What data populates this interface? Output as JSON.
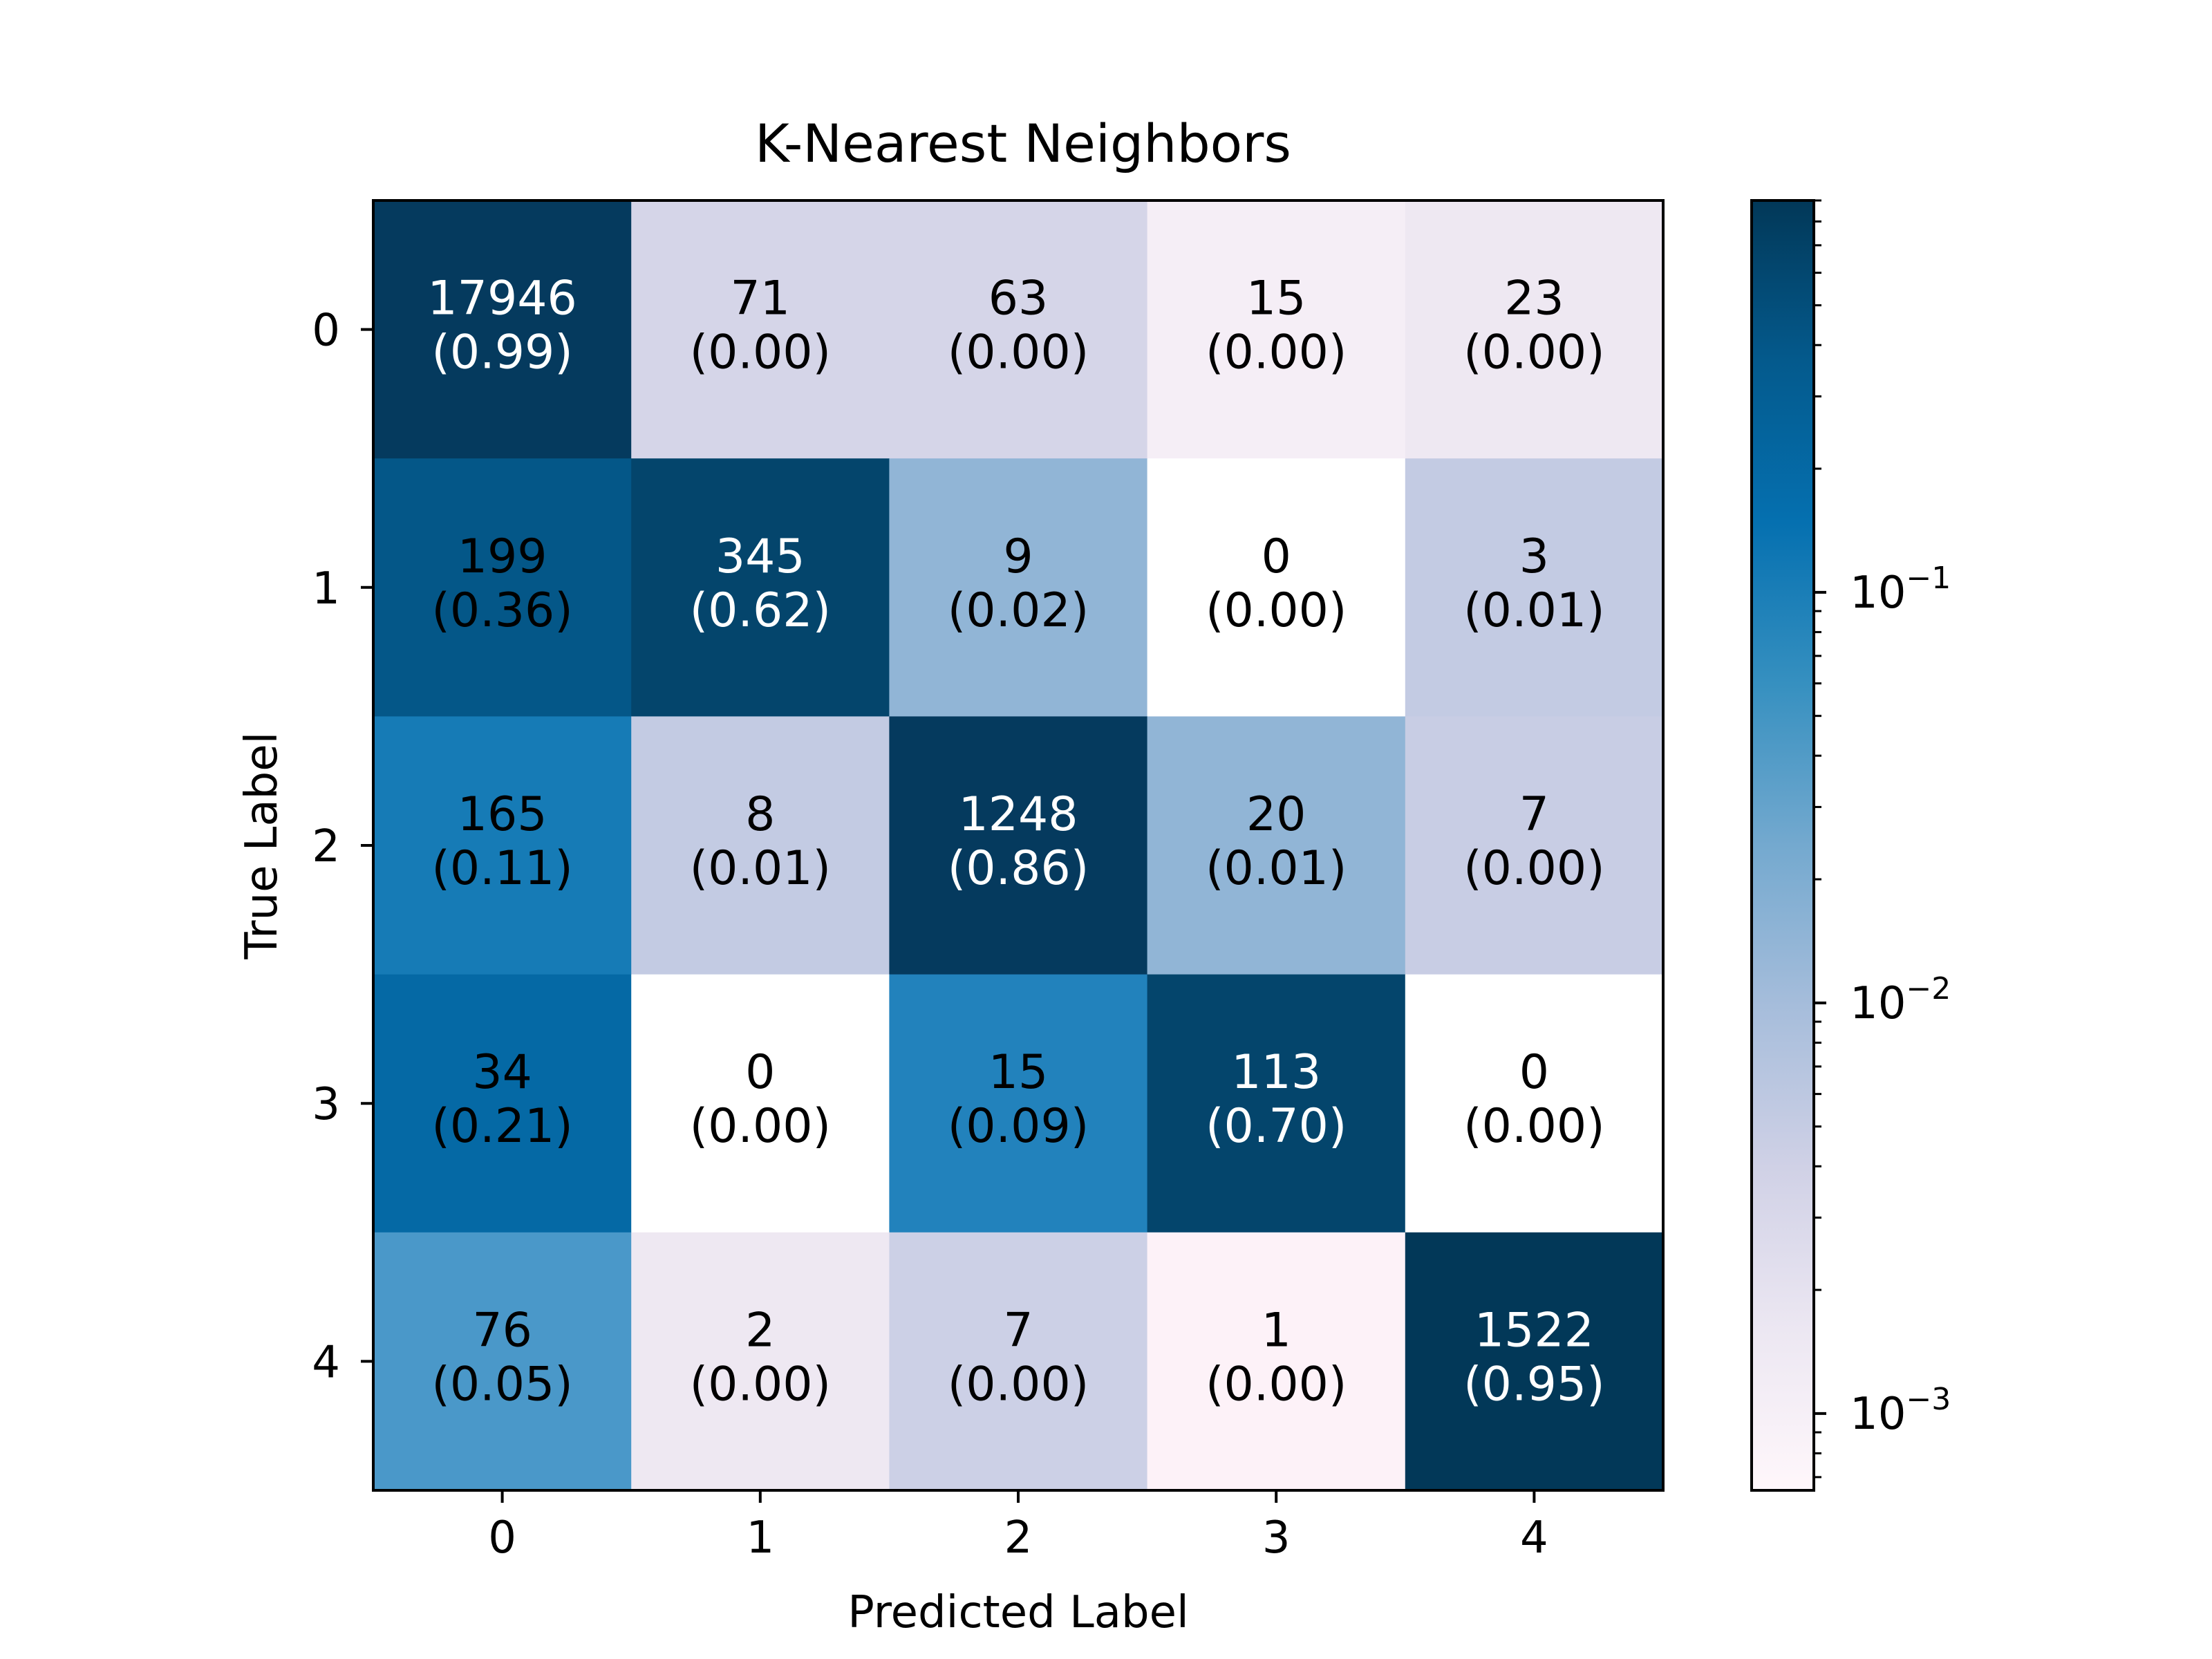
{
  "chart_data": {
    "type": "heatmap",
    "title": "K-Nearest Neighbors",
    "xlabel": "Predicted Label",
    "ylabel": "True Label",
    "x_categories": [
      "0",
      "1",
      "2",
      "3",
      "4"
    ],
    "y_categories": [
      "0",
      "1",
      "2",
      "3",
      "4"
    ],
    "counts": [
      [
        17946,
        71,
        63,
        15,
        23
      ],
      [
        199,
        345,
        9,
        0,
        3
      ],
      [
        165,
        8,
        1248,
        20,
        7
      ],
      [
        34,
        0,
        15,
        113,
        0
      ],
      [
        76,
        2,
        7,
        1,
        1522
      ]
    ],
    "proportions": [
      [
        "0.99",
        "0.00",
        "0.00",
        "0.00",
        "0.00"
      ],
      [
        "0.36",
        "0.62",
        "0.02",
        "0.00",
        "0.01"
      ],
      [
        "0.11",
        "0.01",
        "0.86",
        "0.01",
        "0.00"
      ],
      [
        "0.21",
        "0.00",
        "0.09",
        "0.70",
        "0.00"
      ],
      [
        "0.05",
        "0.00",
        "0.00",
        "0.00",
        "0.95"
      ]
    ],
    "cell_colors": [
      [
        "#053a5e",
        "#d5d5e8",
        "#d5d5e8",
        "#f5eef6",
        "#eee8f2"
      ],
      [
        "#045788",
        "#04456c",
        "#91b5d6",
        "#ffffff",
        "#c3cbe3"
      ],
      [
        "#167bb6",
        "#c3cbe3",
        "#053a5e",
        "#91b5d6",
        "#c8cde4"
      ],
      [
        "#0569a5",
        "#ffffff",
        "#2282bc",
        "#04456c",
        "#ffffff"
      ],
      [
        "#4a98c9",
        "#eee8f2",
        "#ccd0e6",
        "#fdf2f8",
        "#023858"
      ]
    ],
    "text_colors": [
      [
        "#ffffff",
        "#000000",
        "#000000",
        "#000000",
        "#000000"
      ],
      [
        "#000000",
        "#ffffff",
        "#000000",
        "#000000",
        "#000000"
      ],
      [
        "#000000",
        "#000000",
        "#ffffff",
        "#000000",
        "#000000"
      ],
      [
        "#000000",
        "#000000",
        "#000000",
        "#ffffff",
        "#000000"
      ],
      [
        "#000000",
        "#000000",
        "#000000",
        "#000000",
        "#ffffff"
      ]
    ],
    "colorbar": {
      "scale": "log",
      "colormap": "PuBu",
      "min": 0.00065,
      "max": 0.9,
      "tick_values": [
        0.1,
        0.01,
        0.001
      ],
      "tick_bases": [
        "10",
        "10",
        "10"
      ],
      "tick_exponents": [
        "−1",
        "−2",
        "−3"
      ],
      "colors": [
        "#fff7fb",
        "#ece7f2",
        "#d0d1e6",
        "#a6bddb",
        "#74a9cf",
        "#3690c0",
        "#0570b0",
        "#045a8d",
        "#023858"
      ]
    }
  }
}
